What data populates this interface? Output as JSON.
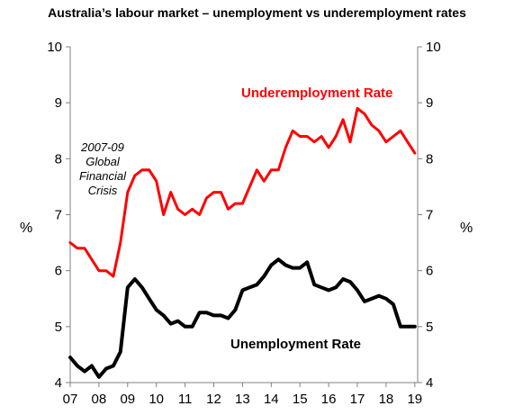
{
  "chart_data": {
    "type": "line",
    "title": "Australia’s labour market – unemployment vs underemployment rates",
    "xlabel": "",
    "ylabel_left": "%",
    "ylabel_right": "%",
    "ylim": [
      4,
      10
    ],
    "yticks": [
      4,
      5,
      6,
      7,
      8,
      9,
      10
    ],
    "xlim": [
      2007,
      2019.1
    ],
    "xtick_labels": [
      "07",
      "08",
      "09",
      "10",
      "11",
      "12",
      "13",
      "14",
      "15",
      "16",
      "17",
      "18",
      "19"
    ],
    "annotation": [
      "2007-09",
      "Global",
      "Financial",
      "Crisis"
    ],
    "series": [
      {
        "name": "Underemployment Rate",
        "color": "#ff0000",
        "x": [
          2007.0,
          2007.25,
          2007.5,
          2007.75,
          2008.0,
          2008.25,
          2008.5,
          2008.75,
          2009.0,
          2009.25,
          2009.5,
          2009.75,
          2010.0,
          2010.25,
          2010.5,
          2010.75,
          2011.0,
          2011.25,
          2011.5,
          2011.75,
          2012.0,
          2012.25,
          2012.5,
          2012.75,
          2013.0,
          2013.25,
          2013.5,
          2013.75,
          2014.0,
          2014.25,
          2014.5,
          2014.75,
          2015.0,
          2015.25,
          2015.5,
          2015.75,
          2016.0,
          2016.25,
          2016.5,
          2016.75,
          2017.0,
          2017.25,
          2017.5,
          2017.75,
          2018.0,
          2018.25,
          2018.5,
          2018.75,
          2019.0
        ],
        "values": [
          6.5,
          6.4,
          6.4,
          6.2,
          6.0,
          6.0,
          5.9,
          6.5,
          7.4,
          7.7,
          7.8,
          7.8,
          7.6,
          7.0,
          7.4,
          7.1,
          7.0,
          7.1,
          7.0,
          7.3,
          7.4,
          7.4,
          7.1,
          7.2,
          7.2,
          7.5,
          7.8,
          7.6,
          7.8,
          7.8,
          8.2,
          8.5,
          8.4,
          8.4,
          8.3,
          8.4,
          8.2,
          8.4,
          8.7,
          8.3,
          8.9,
          8.8,
          8.6,
          8.5,
          8.3,
          8.4,
          8.5,
          8.3,
          8.1
        ]
      },
      {
        "name": "Unemployment Rate",
        "color": "#000000",
        "x": [
          2007.0,
          2007.25,
          2007.5,
          2007.75,
          2008.0,
          2008.25,
          2008.5,
          2008.75,
          2009.0,
          2009.25,
          2009.5,
          2009.75,
          2010.0,
          2010.25,
          2010.5,
          2010.75,
          2011.0,
          2011.25,
          2011.5,
          2011.75,
          2012.0,
          2012.25,
          2012.5,
          2012.75,
          2013.0,
          2013.25,
          2013.5,
          2013.75,
          2014.0,
          2014.25,
          2014.5,
          2014.75,
          2015.0,
          2015.25,
          2015.5,
          2015.75,
          2016.0,
          2016.25,
          2016.5,
          2016.75,
          2017.0,
          2017.25,
          2017.5,
          2017.75,
          2018.0,
          2018.25,
          2018.5,
          2018.75,
          2019.0
        ],
        "values": [
          4.45,
          4.3,
          4.2,
          4.3,
          4.1,
          4.25,
          4.3,
          4.55,
          5.7,
          5.85,
          5.7,
          5.5,
          5.3,
          5.2,
          5.05,
          5.1,
          5.0,
          5.0,
          5.25,
          5.25,
          5.2,
          5.2,
          5.15,
          5.3,
          5.65,
          5.7,
          5.75,
          5.9,
          6.1,
          6.2,
          6.1,
          6.05,
          6.05,
          6.15,
          5.75,
          5.7,
          5.65,
          5.7,
          5.85,
          5.8,
          5.65,
          5.45,
          5.5,
          5.55,
          5.5,
          5.4,
          5.0,
          5.0,
          5.0
        ]
      }
    ]
  }
}
